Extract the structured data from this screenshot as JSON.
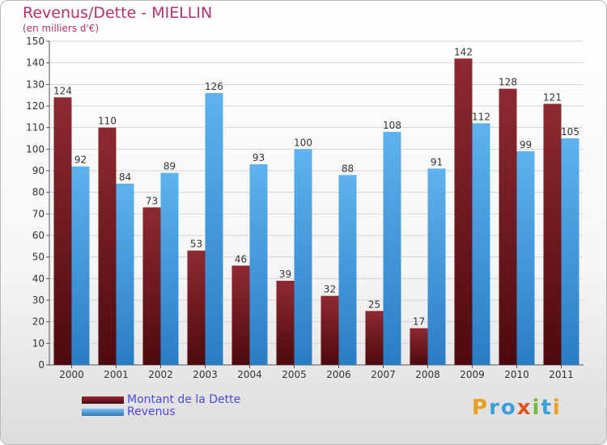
{
  "chart_data": {
    "type": "bar",
    "title": "Revenus/Dette - MIELLIN",
    "subtitle": "(en milliers d'€)",
    "categories": [
      "2000",
      "2001",
      "2002",
      "2003",
      "2004",
      "2005",
      "2006",
      "2007",
      "2008",
      "2009",
      "2010",
      "2011"
    ],
    "series": [
      {
        "name": "Montant de la Dette",
        "color": "#7a1a22",
        "values": [
          124,
          110,
          73,
          53,
          46,
          39,
          32,
          25,
          17,
          142,
          128,
          121
        ]
      },
      {
        "name": "Revenus",
        "color": "#4aa3e8",
        "values": [
          92,
          84,
          89,
          126,
          93,
          100,
          88,
          108,
          91,
          112,
          99,
          105
        ]
      }
    ],
    "ylim": [
      0,
      150
    ],
    "yticks": [
      0,
      10,
      20,
      30,
      40,
      50,
      60,
      70,
      80,
      90,
      100,
      110,
      120,
      130,
      140,
      150
    ],
    "grid": true,
    "legend": "bottom-left"
  },
  "branding": {
    "letters": [
      "P",
      "r",
      "o",
      "x",
      "i",
      "t",
      "i"
    ]
  }
}
